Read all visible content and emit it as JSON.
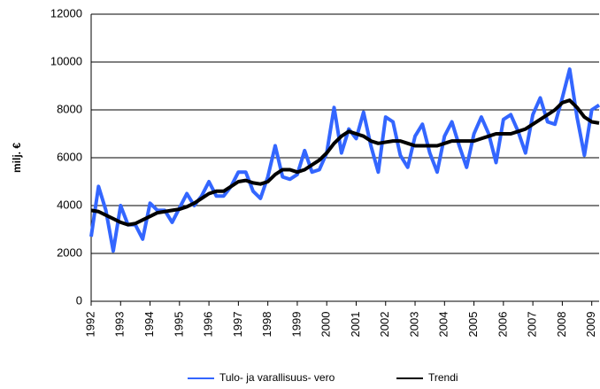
{
  "chart_data": {
    "type": "line",
    "y_label": "milj. €",
    "categories": [
      "1992",
      null,
      null,
      null,
      "1993",
      null,
      null,
      null,
      "1994",
      null,
      null,
      null,
      "1995",
      null,
      null,
      null,
      "1996",
      null,
      null,
      null,
      "1997",
      null,
      null,
      null,
      "1998",
      null,
      null,
      null,
      "1999",
      null,
      null,
      null,
      "2000",
      null,
      null,
      null,
      "2001",
      null,
      null,
      null,
      "2002",
      null,
      null,
      null,
      "2003",
      null,
      null,
      null,
      "2004",
      null,
      null,
      null,
      "2005",
      null,
      null,
      null,
      "2006",
      null,
      null,
      null,
      "2007",
      null,
      null,
      null,
      "2008",
      null,
      null,
      null,
      "2009",
      null
    ],
    "series": [
      {
        "name": "Tulo- ja varallisuus- vero",
        "color": "#3366ff",
        "values": [
          2700,
          4800,
          3800,
          2100,
          4000,
          3200,
          3200,
          2600,
          4100,
          3800,
          3800,
          3300,
          3900,
          4500,
          4000,
          4400,
          5000,
          4400,
          4400,
          4800,
          5400,
          5400,
          4600,
          4300,
          5200,
          6500,
          5200,
          5100,
          5300,
          6300,
          5400,
          5500,
          6200,
          8100,
          6200,
          7200,
          6800,
          7900,
          6500,
          5400,
          7700,
          7500,
          6100,
          5600,
          6900,
          7400,
          6200,
          5400,
          6900,
          7500,
          6500,
          5600,
          7000,
          7700,
          7000,
          5800,
          7600,
          7800,
          7100,
          6200,
          7800,
          8500,
          7500,
          7400,
          8500,
          9700,
          7700,
          6100,
          8000,
          8200
        ]
      },
      {
        "name": "Trendi",
        "color": "#000000",
        "values": [
          3800,
          3750,
          3600,
          3450,
          3300,
          3200,
          3250,
          3400,
          3550,
          3700,
          3750,
          3800,
          3850,
          3950,
          4100,
          4300,
          4500,
          4600,
          4600,
          4800,
          5000,
          5050,
          4950,
          4900,
          5000,
          5300,
          5500,
          5500,
          5400,
          5500,
          5700,
          5900,
          6200,
          6600,
          6900,
          7100,
          7000,
          6900,
          6700,
          6600,
          6650,
          6700,
          6700,
          6600,
          6500,
          6500,
          6500,
          6500,
          6600,
          6700,
          6700,
          6700,
          6700,
          6800,
          6900,
          7000,
          7000,
          7000,
          7100,
          7200,
          7400,
          7600,
          7800,
          8000,
          8300,
          8400,
          8100,
          7700,
          7500,
          7450
        ]
      }
    ],
    "ylim": [
      0,
      12000
    ],
    "yticks": [
      0,
      2000,
      4000,
      6000,
      8000,
      10000,
      12000
    ],
    "grid": true
  }
}
